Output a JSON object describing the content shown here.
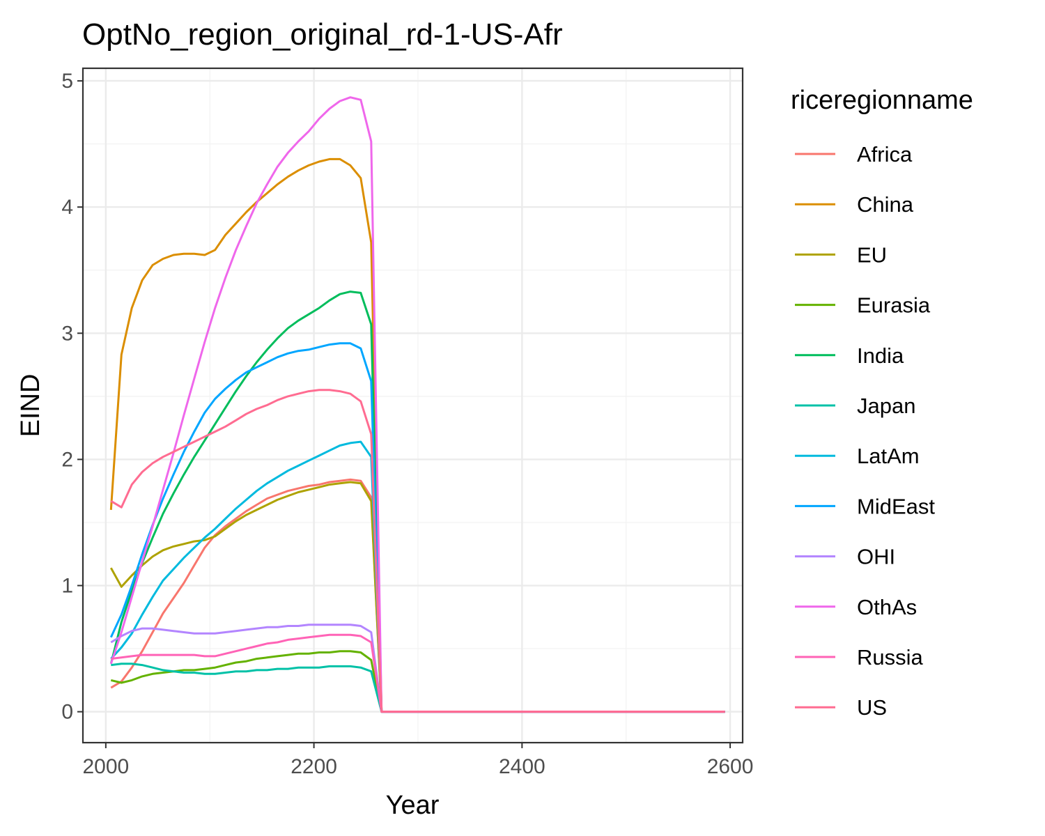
{
  "chart_data": {
    "type": "line",
    "title": "OptNo_region_original_rd-1-US-Afr",
    "xlabel": "Year",
    "ylabel": "EIND",
    "xlim": [
      1978,
      2612
    ],
    "ylim": [
      -0.245,
      5.1
    ],
    "x_ticks": [
      2000,
      2200,
      2400,
      2600
    ],
    "y_ticks": [
      0,
      1,
      2,
      3,
      4,
      5
    ],
    "grid": true,
    "legend_title": "riceregionname",
    "legend_position": "right",
    "x": [
      2005,
      2015,
      2025,
      2035,
      2045,
      2055,
      2065,
      2075,
      2085,
      2095,
      2105,
      2115,
      2125,
      2135,
      2145,
      2155,
      2165,
      2175,
      2185,
      2195,
      2205,
      2215,
      2225,
      2235,
      2245,
      2255,
      2265,
      2275,
      2595
    ],
    "series": [
      {
        "name": "Africa",
        "color": "#F8766D",
        "values": [
          0.19,
          0.24,
          0.35,
          0.48,
          0.63,
          0.78,
          0.9,
          1.02,
          1.16,
          1.3,
          1.4,
          1.47,
          1.53,
          1.59,
          1.64,
          1.69,
          1.72,
          1.75,
          1.77,
          1.79,
          1.8,
          1.82,
          1.83,
          1.84,
          1.83,
          1.7,
          0,
          0,
          0
        ]
      },
      {
        "name": "China",
        "color": "#DB8E00",
        "values": [
          1.6,
          2.83,
          3.2,
          3.42,
          3.54,
          3.59,
          3.62,
          3.63,
          3.63,
          3.62,
          3.66,
          3.78,
          3.87,
          3.96,
          4.04,
          4.11,
          4.18,
          4.24,
          4.29,
          4.33,
          4.36,
          4.38,
          4.38,
          4.33,
          4.23,
          3.72,
          0,
          0,
          0
        ]
      },
      {
        "name": "EU",
        "color": "#AEA200",
        "values": [
          1.14,
          0.99,
          1.08,
          1.16,
          1.23,
          1.28,
          1.31,
          1.33,
          1.35,
          1.36,
          1.39,
          1.45,
          1.51,
          1.56,
          1.6,
          1.64,
          1.68,
          1.71,
          1.74,
          1.76,
          1.78,
          1.8,
          1.81,
          1.82,
          1.81,
          1.67,
          0,
          0,
          0
        ]
      },
      {
        "name": "Eurasia",
        "color": "#64B200",
        "values": [
          0.25,
          0.23,
          0.25,
          0.28,
          0.3,
          0.31,
          0.32,
          0.33,
          0.33,
          0.34,
          0.35,
          0.37,
          0.39,
          0.4,
          0.42,
          0.43,
          0.44,
          0.45,
          0.46,
          0.46,
          0.47,
          0.47,
          0.48,
          0.48,
          0.47,
          0.41,
          0,
          0,
          0
        ]
      },
      {
        "name": "India",
        "color": "#00BD5C",
        "values": [
          0.38,
          0.71,
          0.96,
          1.18,
          1.38,
          1.57,
          1.73,
          1.88,
          2.02,
          2.15,
          2.28,
          2.41,
          2.54,
          2.66,
          2.77,
          2.87,
          2.96,
          3.04,
          3.1,
          3.15,
          3.2,
          3.26,
          3.31,
          3.33,
          3.32,
          3.07,
          0,
          0,
          0
        ]
      },
      {
        "name": "Japan",
        "color": "#00C1A7",
        "values": [
          0.37,
          0.38,
          0.38,
          0.37,
          0.35,
          0.33,
          0.32,
          0.31,
          0.31,
          0.3,
          0.3,
          0.31,
          0.32,
          0.32,
          0.33,
          0.33,
          0.34,
          0.34,
          0.35,
          0.35,
          0.35,
          0.36,
          0.36,
          0.36,
          0.35,
          0.32,
          0,
          0,
          0
        ]
      },
      {
        "name": "LatAm",
        "color": "#00BADE",
        "values": [
          0.42,
          0.51,
          0.62,
          0.77,
          0.91,
          1.04,
          1.13,
          1.22,
          1.3,
          1.38,
          1.45,
          1.53,
          1.61,
          1.68,
          1.75,
          1.81,
          1.86,
          1.91,
          1.95,
          1.99,
          2.03,
          2.07,
          2.11,
          2.13,
          2.14,
          2.02,
          0,
          0,
          0
        ]
      },
      {
        "name": "MidEast",
        "color": "#00A6FF",
        "values": [
          0.59,
          0.77,
          1.0,
          1.25,
          1.48,
          1.69,
          1.88,
          2.06,
          2.22,
          2.37,
          2.48,
          2.56,
          2.63,
          2.69,
          2.73,
          2.77,
          2.81,
          2.84,
          2.86,
          2.87,
          2.89,
          2.91,
          2.92,
          2.92,
          2.88,
          2.62,
          0,
          0,
          0
        ]
      },
      {
        "name": "OHI",
        "color": "#B385FF",
        "values": [
          0.55,
          0.6,
          0.64,
          0.66,
          0.66,
          0.65,
          0.64,
          0.63,
          0.62,
          0.62,
          0.62,
          0.63,
          0.64,
          0.65,
          0.66,
          0.67,
          0.67,
          0.68,
          0.68,
          0.69,
          0.69,
          0.69,
          0.69,
          0.69,
          0.68,
          0.63,
          0,
          0,
          0
        ]
      },
      {
        "name": "OthAs",
        "color": "#EF67EB",
        "values": [
          0.38,
          0.63,
          0.91,
          1.19,
          1.47,
          1.76,
          2.05,
          2.35,
          2.64,
          2.93,
          3.2,
          3.44,
          3.66,
          3.85,
          4.03,
          4.18,
          4.32,
          4.43,
          4.52,
          4.6,
          4.7,
          4.78,
          4.84,
          4.87,
          4.85,
          4.52,
          0,
          0,
          0
        ]
      },
      {
        "name": "Russia",
        "color": "#FF63B6",
        "values": [
          0.42,
          0.43,
          0.44,
          0.45,
          0.45,
          0.45,
          0.45,
          0.45,
          0.45,
          0.44,
          0.44,
          0.46,
          0.48,
          0.5,
          0.52,
          0.54,
          0.55,
          0.57,
          0.58,
          0.59,
          0.6,
          0.61,
          0.61,
          0.61,
          0.6,
          0.55,
          0,
          0,
          0
        ]
      },
      {
        "name": "US",
        "color": "#FF6C91",
        "values": [
          1.67,
          1.62,
          1.8,
          1.9,
          1.97,
          2.02,
          2.06,
          2.1,
          2.14,
          2.18,
          2.22,
          2.26,
          2.31,
          2.36,
          2.4,
          2.43,
          2.47,
          2.5,
          2.52,
          2.54,
          2.55,
          2.55,
          2.54,
          2.52,
          2.46,
          2.2,
          0,
          0,
          0
        ]
      }
    ]
  }
}
